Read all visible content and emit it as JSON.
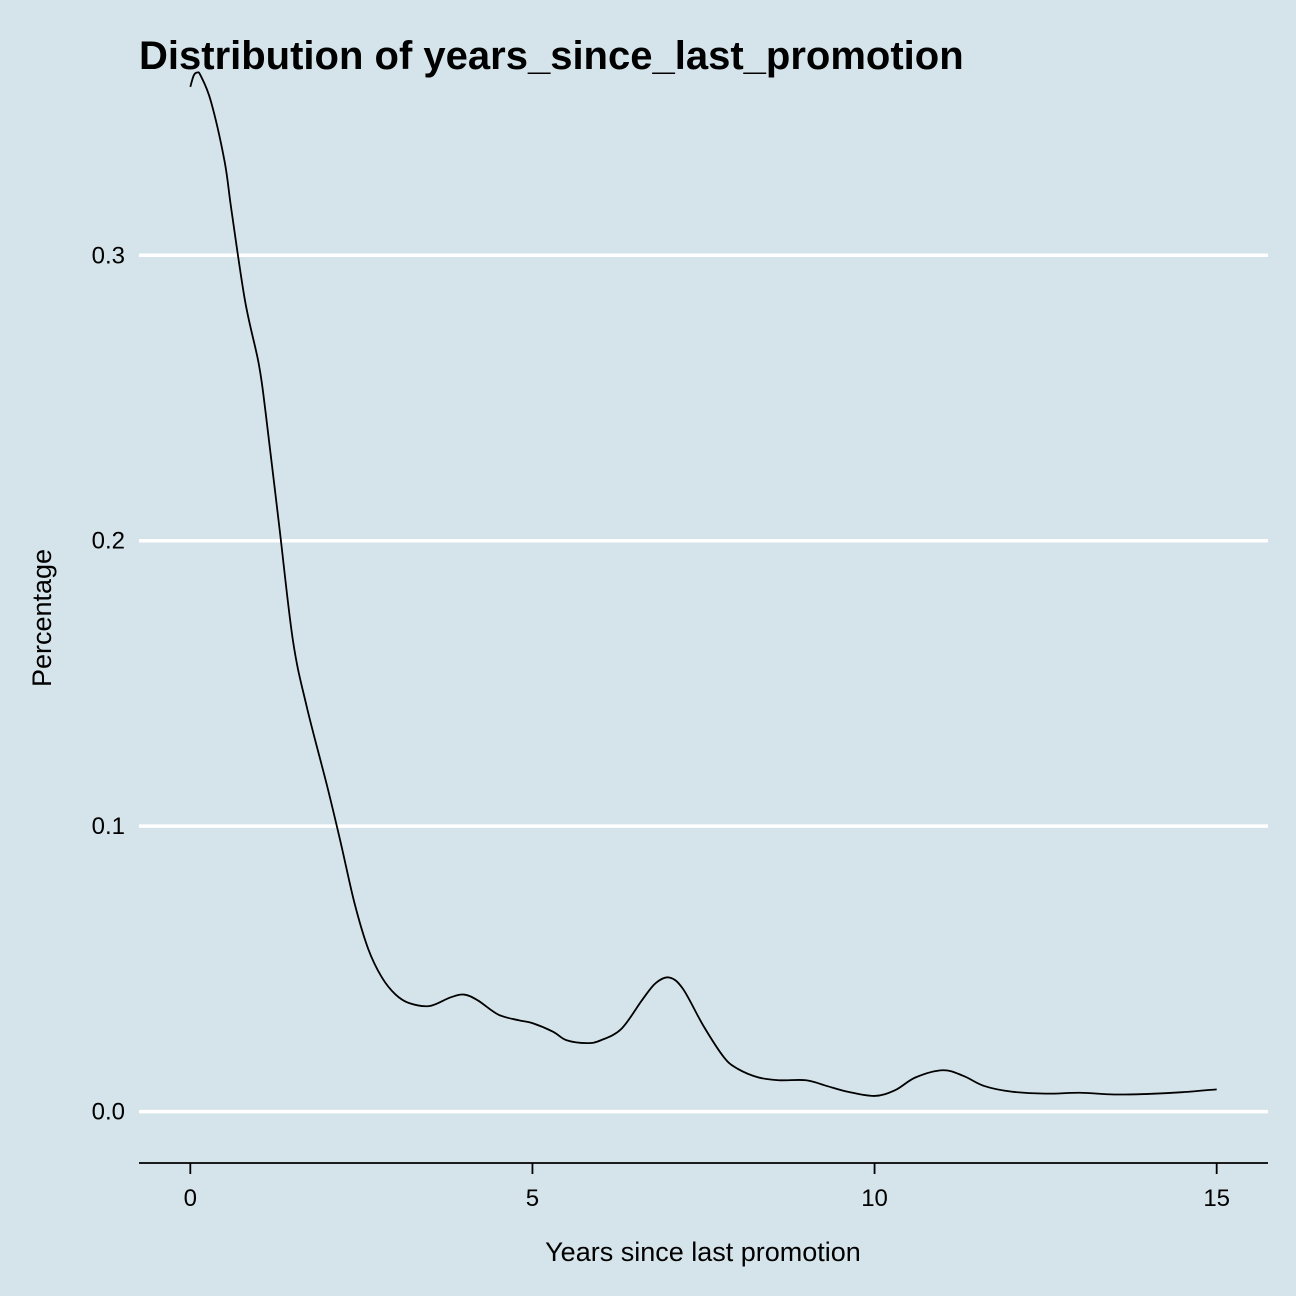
{
  "chart_data": {
    "type": "line",
    "title": "Distribution of years_since_last_promotion",
    "xlabel": "Years since last promotion",
    "ylabel": "Percentage",
    "xlim": [
      -0.75,
      15.75
    ],
    "ylim": [
      -0.018,
      0.36
    ],
    "xticks": [
      0,
      5,
      10,
      15
    ],
    "yticks": [
      0.0,
      0.1,
      0.2,
      0.3
    ],
    "ytick_labels": [
      "0.0",
      "0.1",
      "0.2",
      "0.3"
    ],
    "grid": "horizontal",
    "series": [
      {
        "x": [
          0.0,
          0.05,
          0.1,
          0.15,
          0.3,
          0.5,
          0.6,
          0.8,
          1.0,
          1.1,
          1.3,
          1.5,
          1.7,
          2.0,
          2.2,
          2.4,
          2.6,
          2.8,
          3.0,
          3.2,
          3.5,
          3.8,
          4.0,
          4.2,
          4.5,
          4.8,
          5.0,
          5.3,
          5.5,
          5.8,
          6.0,
          6.3,
          6.6,
          6.8,
          7.0,
          7.2,
          7.5,
          7.8,
          8.0,
          8.3,
          8.6,
          9.0,
          9.3,
          9.6,
          10.0,
          10.3,
          10.6,
          11.0,
          11.3,
          11.6,
          12.0,
          12.5,
          13.0,
          13.5,
          14.0,
          14.5,
          15.0
        ],
        "values": [
          0.359,
          0.363,
          0.364,
          0.363,
          0.354,
          0.333,
          0.316,
          0.284,
          0.262,
          0.245,
          0.205,
          0.165,
          0.142,
          0.114,
          0.094,
          0.073,
          0.057,
          0.047,
          0.041,
          0.038,
          0.037,
          0.04,
          0.041,
          0.039,
          0.034,
          0.032,
          0.031,
          0.028,
          0.025,
          0.024,
          0.025,
          0.029,
          0.039,
          0.045,
          0.047,
          0.043,
          0.03,
          0.019,
          0.015,
          0.012,
          0.011,
          0.011,
          0.009,
          0.007,
          0.0055,
          0.0075,
          0.012,
          0.0145,
          0.0125,
          0.009,
          0.007,
          0.0063,
          0.0066,
          0.006,
          0.0062,
          0.0068,
          0.0078
        ]
      }
    ]
  }
}
